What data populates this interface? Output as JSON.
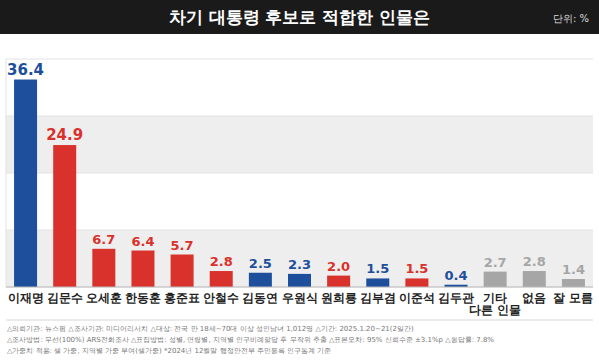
{
  "chart_data": {
    "type": "bar",
    "title": "차기 대통령 후보로 적합한 인물은",
    "subtitle": "단위: %",
    "categories": [
      "이재명",
      "김문수",
      "오세훈",
      "한동훈",
      "홍준표",
      "안철수",
      "김동연",
      "우원식",
      "원희룡",
      "김부겸",
      "이준석",
      "김두관",
      "기타 다른 인물",
      "없음",
      "잘 모름"
    ],
    "values": [
      36.4,
      24.9,
      6.7,
      6.4,
      5.7,
      2.8,
      2.5,
      2.3,
      2.0,
      1.5,
      1.5,
      0.4,
      2.7,
      2.8,
      1.4
    ],
    "value_labels": [
      "36.4",
      "24.9",
      "6.7",
      "6.4",
      "5.7",
      "2.8",
      "2.5",
      "2.3",
      "2.0",
      "1.5",
      "1.5",
      "0.4",
      "2.7",
      "2.8",
      "1.4"
    ],
    "colors": [
      "#1d4f9c",
      "#d9312b",
      "#d9312b",
      "#d9312b",
      "#d9312b",
      "#d9312b",
      "#1d4f9c",
      "#1d4f9c",
      "#d9312b",
      "#1d4f9c",
      "#d9312b",
      "#1d4f9c",
      "#a6a6a6",
      "#a6a6a6",
      "#a6a6a6"
    ],
    "ylim": [
      0,
      40
    ],
    "yticks": [
      0,
      10,
      20,
      30,
      40
    ],
    "grid": true,
    "tick_labels": "x",
    "data_labels": true,
    "annotations": [
      "△의뢰기관: 뉴스핌  △조사기관: 미디어리서치  △대상: 전국 만 18세~70대 이상 성인남녀 1,012명  △기간: 2025.1.20~21(2일간)",
      "△조사방법: 무선(100%) ARS전화조사  △표집방법: 성별, 연령별, 지역별 인구비례할당 후 무작위 추출  △표본오차: 95% 신뢰수준 ±3.1%p  △응답률: 7.8%",
      "△가중치 적용: 셀 가중, 지역별 가중 부여(셀가중) *2024년 12월말 행정안전부 주민등록 인구통계 기준"
    ]
  }
}
